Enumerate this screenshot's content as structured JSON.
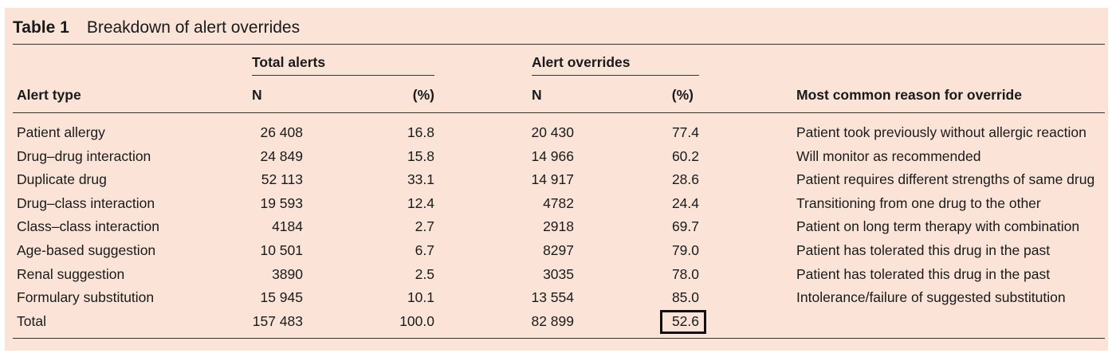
{
  "table": {
    "label": "Table 1",
    "title": "Breakdown of alert overrides",
    "group_headers": {
      "total_alerts": "Total alerts",
      "alert_overrides": "Alert overrides"
    },
    "columns": {
      "alert_type": "Alert type",
      "total_n": "N",
      "total_pct": "(%)",
      "override_n": "N",
      "override_pct": "(%)",
      "reason": "Most common reason for override"
    },
    "rows": [
      {
        "type": "Patient allergy",
        "total_n": "26 408",
        "total_pct": "16.8",
        "override_n": "20 430",
        "override_pct": "77.4",
        "reason": "Patient took previously without allergic reaction"
      },
      {
        "type": "Drug–drug interaction",
        "total_n": "24 849",
        "total_pct": "15.8",
        "override_n": "14 966",
        "override_pct": "60.2",
        "reason": "Will monitor as recommended"
      },
      {
        "type": "Duplicate drug",
        "total_n": "52 113",
        "total_pct": "33.1",
        "override_n": "14 917",
        "override_pct": "28.6",
        "reason": "Patient requires different strengths of same drug"
      },
      {
        "type": "Drug–class interaction",
        "total_n": "19 593",
        "total_pct": "12.4",
        "override_n": "4782",
        "override_pct": "24.4",
        "reason": "Transitioning from one drug to the other"
      },
      {
        "type": "Class–class interaction",
        "total_n": "4184",
        "total_pct": "2.7",
        "override_n": "2918",
        "override_pct": "69.7",
        "reason": "Patient on long term therapy with combination"
      },
      {
        "type": "Age-based suggestion",
        "total_n": "10 501",
        "total_pct": "6.7",
        "override_n": "8297",
        "override_pct": "79.0",
        "reason": "Patient has tolerated this drug in the past"
      },
      {
        "type": "Renal suggestion",
        "total_n": "3890",
        "total_pct": "2.5",
        "override_n": "3035",
        "override_pct": "78.0",
        "reason": "Patient has tolerated this drug in the past"
      },
      {
        "type": "Formulary substitution",
        "total_n": "15 945",
        "total_pct": "10.1",
        "override_n": "13 554",
        "override_pct": "85.0",
        "reason": "Intolerance/failure of suggested substitution"
      },
      {
        "type": "Total",
        "total_n": "157 483",
        "total_pct": "100.0",
        "override_n": "82 899",
        "override_pct": "52.6",
        "reason": ""
      }
    ]
  }
}
